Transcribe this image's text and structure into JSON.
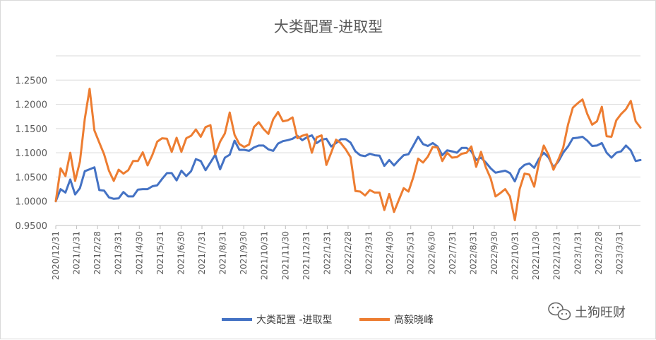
{
  "chart_data": {
    "type": "line",
    "title": "大类配置-进取型",
    "xlabel": "",
    "ylabel": "",
    "ylim": [
      0.95,
      1.3
    ],
    "yticks": [
      "0.9500",
      "1.0000",
      "1.0500",
      "1.1000",
      "1.1500",
      "1.2000",
      "1.2500"
    ],
    "xtick_labels": [
      "2020/12/31",
      "2021/1/31",
      "2021/2/28",
      "2021/3/31",
      "2021/4/30",
      "2021/5/31",
      "2021/6/30",
      "2021/7/31",
      "2021/8/31",
      "2021/9/30",
      "2021/10/31",
      "2021/11/30",
      "2021/12/31",
      "2022/1/31",
      "2022/2/28",
      "2022/3/31",
      "2022/4/30",
      "2022/5/31",
      "2022/6/30",
      "2022/7/31",
      "2022/8/31",
      "2022/9/30",
      "2022/10/31",
      "2022/11/30",
      "2022/12/31",
      "2023/1/31",
      "2023/2/28",
      "2023/3/31"
    ],
    "grid": true,
    "legend_position": "bottom",
    "series": [
      {
        "name": "大类配置 -进取型",
        "color": "#4472C4",
        "values": [
          1.0,
          1.025,
          1.018,
          1.045,
          1.014,
          1.027,
          1.062,
          1.066,
          1.07,
          1.023,
          1.022,
          1.008,
          1.005,
          1.006,
          1.019,
          1.01,
          1.01,
          1.024,
          1.025,
          1.025,
          1.031,
          1.033,
          1.046,
          1.058,
          1.058,
          1.043,
          1.063,
          1.052,
          1.062,
          1.087,
          1.083,
          1.064,
          1.08,
          1.096,
          1.066,
          1.09,
          1.096,
          1.125,
          1.106,
          1.106,
          1.104,
          1.111,
          1.115,
          1.115,
          1.107,
          1.104,
          1.119,
          1.124,
          1.126,
          1.129,
          1.135,
          1.126,
          1.132,
          1.136,
          1.12,
          1.127,
          1.129,
          1.113,
          1.12,
          1.128,
          1.128,
          1.121,
          1.103,
          1.095,
          1.093,
          1.098,
          1.095,
          1.094,
          1.073,
          1.085,
          1.074,
          1.085,
          1.095,
          1.097,
          1.115,
          1.133,
          1.118,
          1.114,
          1.12,
          1.113,
          1.095,
          1.105,
          1.103,
          1.1,
          1.11,
          1.11,
          1.103,
          1.085,
          1.09,
          1.08,
          1.068,
          1.059,
          1.061,
          1.063,
          1.058,
          1.041,
          1.066,
          1.075,
          1.078,
          1.069,
          1.088,
          1.1,
          1.09,
          1.07,
          1.082,
          1.1,
          1.113,
          1.13,
          1.131,
          1.133,
          1.125,
          1.114,
          1.115,
          1.12,
          1.1,
          1.09,
          1.1,
          1.103,
          1.115,
          1.105,
          1.083,
          1.085
        ]
      },
      {
        "name": "高毅晓峰",
        "color": "#ED7D31",
        "values": [
          1.0,
          1.068,
          1.052,
          1.1,
          1.042,
          1.082,
          1.17,
          1.232,
          1.146,
          1.121,
          1.097,
          1.063,
          1.042,
          1.065,
          1.057,
          1.064,
          1.083,
          1.083,
          1.101,
          1.074,
          1.096,
          1.123,
          1.13,
          1.129,
          1.102,
          1.131,
          1.102,
          1.13,
          1.135,
          1.148,
          1.133,
          1.153,
          1.157,
          1.097,
          1.123,
          1.14,
          1.183,
          1.137,
          1.118,
          1.112,
          1.117,
          1.153,
          1.163,
          1.149,
          1.139,
          1.169,
          1.184,
          1.165,
          1.167,
          1.173,
          1.13,
          1.135,
          1.138,
          1.1,
          1.132,
          1.136,
          1.075,
          1.1,
          1.127,
          1.12,
          1.107,
          1.091,
          1.021,
          1.02,
          1.012,
          1.023,
          1.018,
          1.018,
          0.982,
          1.015,
          0.978,
          1.003,
          1.027,
          1.02,
          1.05,
          1.088,
          1.08,
          1.092,
          1.112,
          1.111,
          1.083,
          1.1,
          1.09,
          1.091,
          1.098,
          1.1,
          1.113,
          1.071,
          1.102,
          1.07,
          1.047,
          1.01,
          1.017,
          1.025,
          1.01,
          0.961,
          1.025,
          1.057,
          1.055,
          1.03,
          1.08,
          1.115,
          1.095,
          1.065,
          1.086,
          1.11,
          1.158,
          1.193,
          1.202,
          1.21,
          1.18,
          1.158,
          1.165,
          1.195,
          1.134,
          1.133,
          1.167,
          1.18,
          1.19,
          1.207,
          1.165,
          1.152
        ]
      }
    ]
  },
  "watermark": {
    "text": "土狗旺财",
    "icon": "wechat-icon"
  }
}
